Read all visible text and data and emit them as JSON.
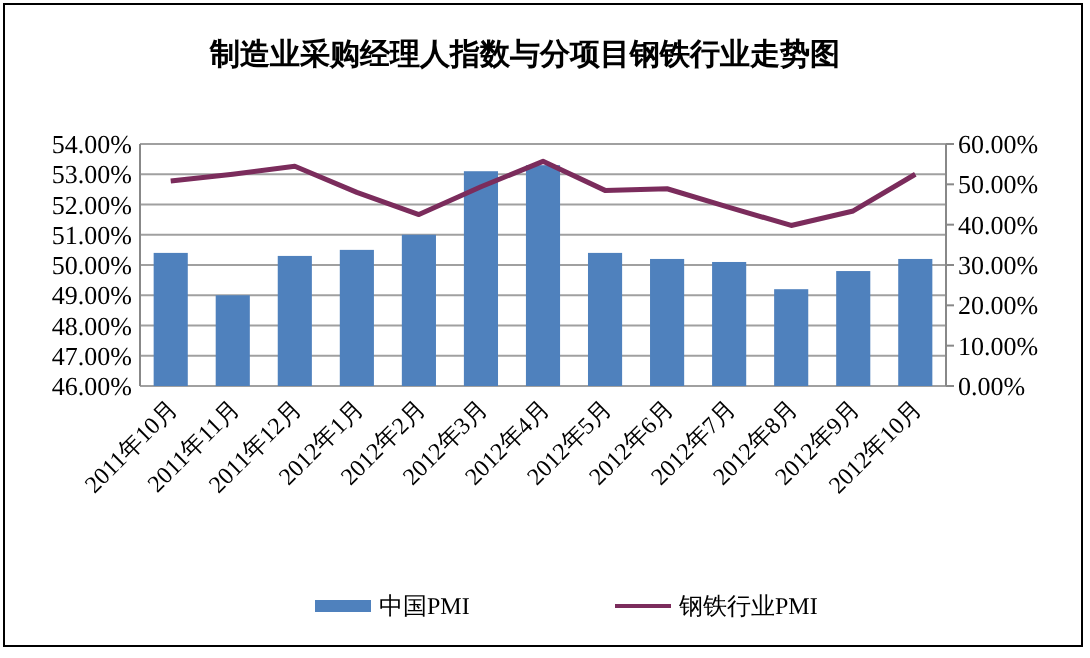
{
  "chart_data": {
    "type": "bar",
    "title": "制造业采购经理人指数与分项目钢铁行业走势图",
    "categories": [
      "2011年10月",
      "2011年11月",
      "2011年12月",
      "2012年1月",
      "2012年2月",
      "2012年3月",
      "2012年4月",
      "2012年5月",
      "2012年6月",
      "2012年7月",
      "2012年8月",
      "2012年9月",
      "2012年10月"
    ],
    "series": [
      {
        "name": "中国PMI",
        "type": "bar",
        "color": "#4f81bd",
        "values": [
          50.4,
          49.0,
          50.3,
          50.5,
          51.0,
          53.1,
          53.3,
          50.4,
          50.2,
          50.1,
          49.2,
          49.8,
          50.2
        ]
      },
      {
        "name": "钢铁行业PMI",
        "type": "line",
        "axis": "y2",
        "color": "#7b2c5c",
        "values": [
          50.8,
          52.5,
          54.5,
          48,
          42.5,
          49.4,
          55.7,
          48.5,
          48.9,
          44.3,
          39.8,
          43.4,
          52.5
        ]
      }
    ],
    "ylim": [
      46,
      54
    ],
    "yticks": [
      {
        "value": 46,
        "label": "46.00%"
      },
      {
        "value": 47,
        "label": "47.00%"
      },
      {
        "value": 48,
        "label": "48.00%"
      },
      {
        "value": 49,
        "label": "49.00%"
      },
      {
        "value": 50,
        "label": "50.00%"
      },
      {
        "value": 51,
        "label": "51.00%"
      },
      {
        "value": 52,
        "label": "52.00%"
      },
      {
        "value": 53,
        "label": "53.00%"
      },
      {
        "value": 54,
        "label": "54.00%"
      }
    ],
    "y2lim": [
      0,
      60
    ],
    "y2ticks": [
      {
        "value": 0,
        "label": "0.00%"
      },
      {
        "value": 10,
        "label": "10.00%"
      },
      {
        "value": 20,
        "label": "20.00%"
      },
      {
        "value": 30,
        "label": "30.00%"
      },
      {
        "value": 40,
        "label": "40.00%"
      },
      {
        "value": 50,
        "label": "50.00%"
      },
      {
        "value": 60,
        "label": "60.00%"
      }
    ],
    "grid": "y",
    "legend": "bottom"
  }
}
